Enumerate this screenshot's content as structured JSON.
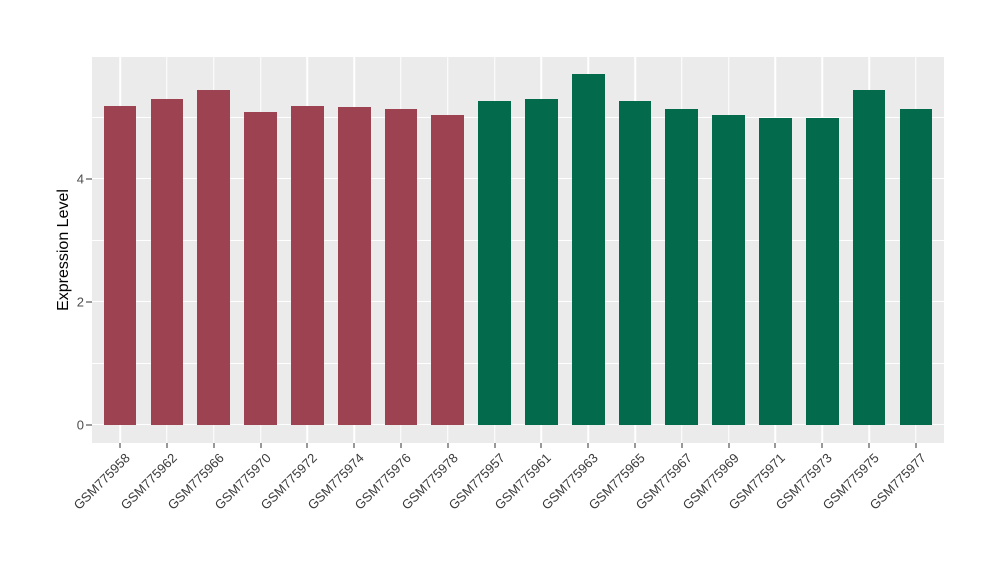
{
  "chart_data": {
    "type": "bar",
    "title": "",
    "xlabel": "",
    "ylabel": "Expression Level",
    "ylim": [
      -0.29,
      5.99
    ],
    "y_major_ticks": [
      0,
      2,
      4
    ],
    "y_minor_gridlines": [
      1,
      3,
      5
    ],
    "grid": true,
    "legend": false,
    "panel_background": "#EBEBEB",
    "gridline_color": "#FFFFFF",
    "categories": [
      "GSM775958",
      "GSM775962",
      "GSM775966",
      "GSM775970",
      "GSM775972",
      "GSM775974",
      "GSM775976",
      "GSM775978",
      "GSM775957",
      "GSM775961",
      "GSM775963",
      "GSM775965",
      "GSM775967",
      "GSM775969",
      "GSM775971",
      "GSM775973",
      "GSM775975",
      "GSM775977"
    ],
    "values": [
      5.19,
      5.31,
      5.45,
      5.1,
      5.19,
      5.18,
      5.15,
      5.04,
      5.28,
      5.3,
      5.72,
      5.27,
      5.14,
      5.05,
      5.0,
      4.99,
      5.45,
      5.14
    ],
    "group_index": [
      0,
      0,
      0,
      0,
      0,
      0,
      0,
      0,
      1,
      1,
      1,
      1,
      1,
      1,
      1,
      1,
      1,
      1
    ],
    "group_colors": [
      "#9D4251",
      "#046A4C"
    ],
    "bar_width_ratio": 0.7
  }
}
